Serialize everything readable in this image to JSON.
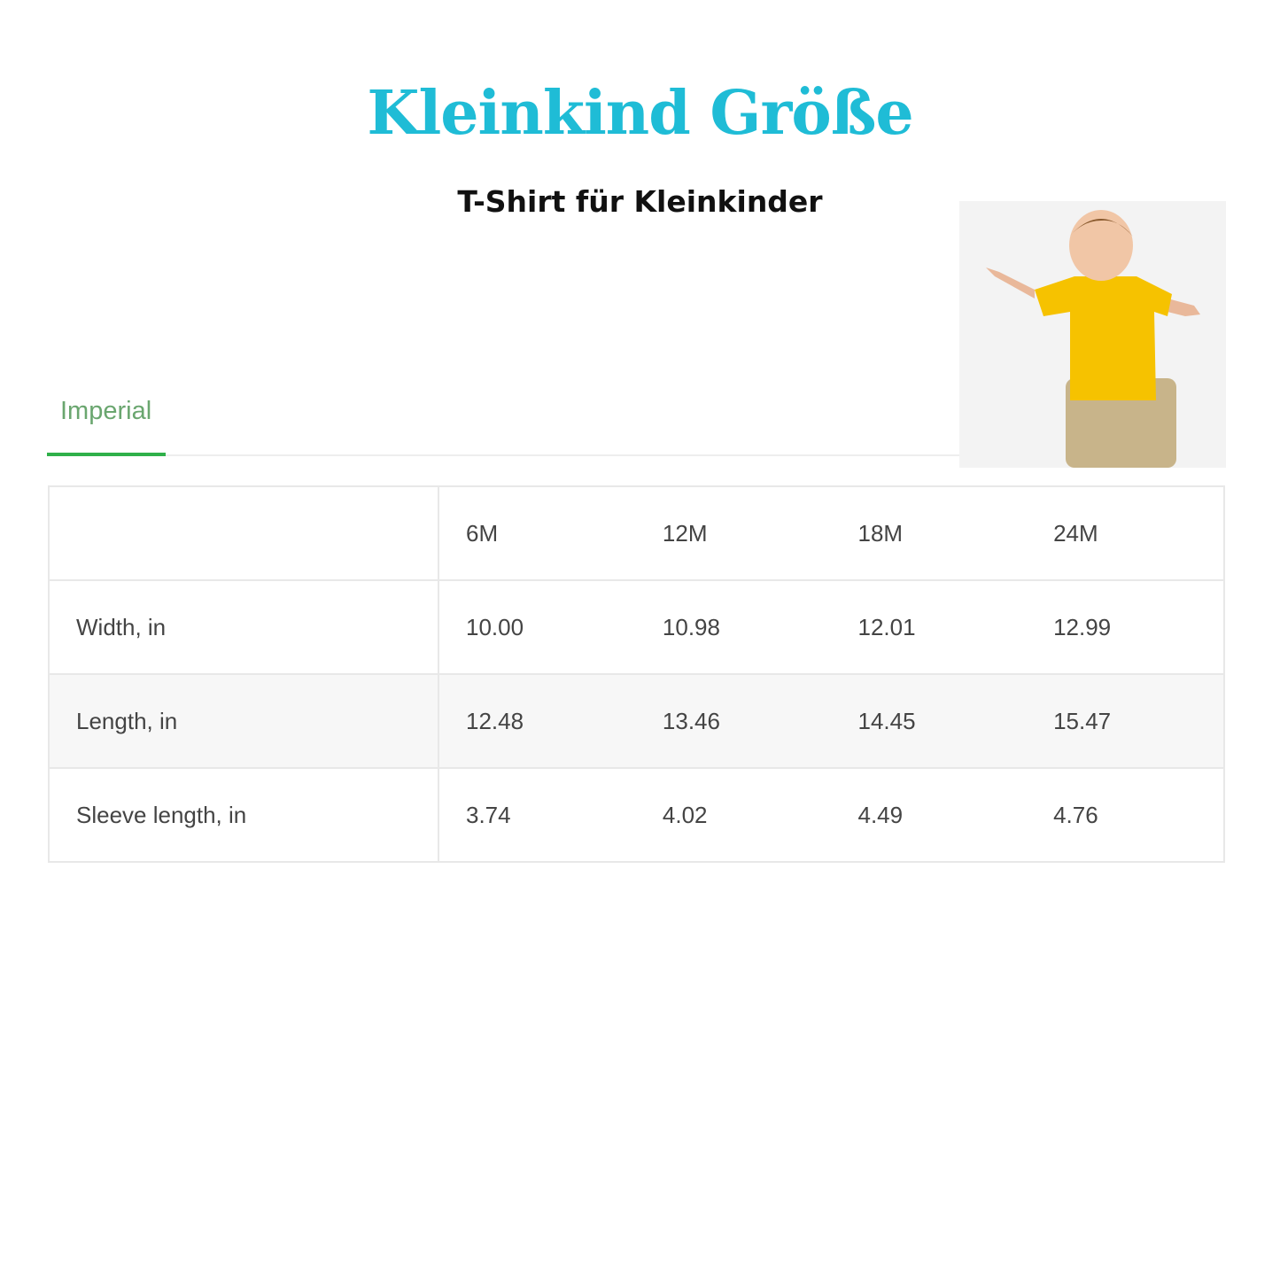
{
  "title": "Kleinkind Größe",
  "subtitle": "T-Shirt für Kleinkinder",
  "tab": "Imperial",
  "colors": {
    "title": "#1fbcd6",
    "tab_accent": "#2fb04a"
  },
  "table": {
    "headers": [
      "",
      "6M",
      "12M",
      "18M",
      "24M"
    ],
    "rows": [
      {
        "label": "Width, in",
        "values": [
          "10.00",
          "10.98",
          "12.01",
          "12.99"
        ]
      },
      {
        "label": "Length, in",
        "values": [
          "12.48",
          "13.46",
          "14.45",
          "15.47"
        ]
      },
      {
        "label": "Sleeve length, in",
        "values": [
          "3.74",
          "4.02",
          "4.49",
          "4.76"
        ]
      }
    ]
  }
}
